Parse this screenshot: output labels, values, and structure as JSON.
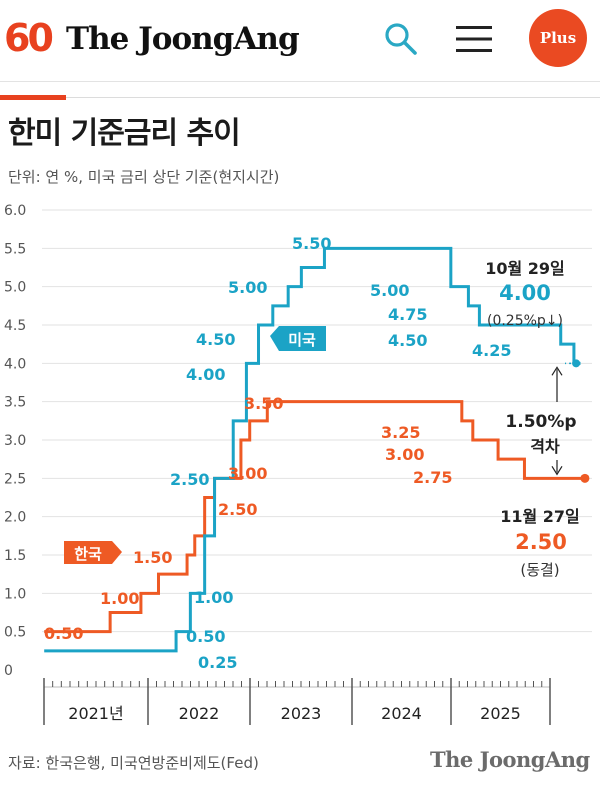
{
  "header": {
    "logo_anniversary": "60",
    "brand": "The JoongAng",
    "plus_label": "Plus"
  },
  "icons": {
    "search": "search-icon",
    "menu": "hamburger-menu-icon"
  },
  "colors": {
    "us": "#1ba3c6",
    "korea": "#ee5a24",
    "brand_accent": "#e8411f"
  },
  "chart_data": {
    "type": "line",
    "title": "한미 기준금리 추이",
    "unit": "단위: 연 %, 미국 금리 상단 기준(현지시간)",
    "source": "자료: 한국은행, 미국연방준비제도(Fed)",
    "ylim": [
      0,
      6
    ],
    "yticks": [
      "0",
      "0.5",
      "1.0",
      "1.5",
      "2.0",
      "2.5",
      "3.0",
      "3.5",
      "4.0",
      "4.5",
      "5.0",
      "5.5",
      "6.0"
    ],
    "xlim": [
      2020.98,
      2026.03
    ],
    "xticks": [
      "2021년",
      "2022",
      "2023",
      "2024",
      "2025"
    ],
    "grid": true,
    "series": [
      {
        "name": "미국",
        "label": "미국",
        "steps": [
          [
            2021.0,
            0.25
          ],
          [
            2022.2,
            0.5
          ],
          [
            2022.33,
            1.0
          ],
          [
            2022.46,
            1.75
          ],
          [
            2022.55,
            2.5
          ],
          [
            2022.72,
            3.25
          ],
          [
            2022.84,
            4.0
          ],
          [
            2022.95,
            4.5
          ],
          [
            2023.08,
            4.75
          ],
          [
            2023.22,
            5.0
          ],
          [
            2023.34,
            5.25
          ],
          [
            2023.55,
            5.5
          ],
          [
            2024.7,
            5.0
          ],
          [
            2024.86,
            4.75
          ],
          [
            2024.96,
            4.5
          ],
          [
            2025.7,
            4.25
          ],
          [
            2025.82,
            4.0
          ]
        ],
        "labels": [
          "0.25",
          "0.50",
          "1.00",
          "2.50",
          "4.00",
          "4.50",
          "5.00",
          "5.50",
          "5.00",
          "4.75",
          "4.50",
          "4.25"
        ],
        "end_date": "10월 29일",
        "end_value": "4.00",
        "end_change": "(0.25%p↓)"
      },
      {
        "name": "한국",
        "label": "한국",
        "steps": [
          [
            2021.0,
            0.5
          ],
          [
            2021.6,
            0.75
          ],
          [
            2021.88,
            1.0
          ],
          [
            2022.04,
            1.25
          ],
          [
            2022.3,
            1.5
          ],
          [
            2022.37,
            1.75
          ],
          [
            2022.46,
            2.25
          ],
          [
            2022.55,
            2.5
          ],
          [
            2022.79,
            3.0
          ],
          [
            2022.87,
            3.25
          ],
          [
            2023.03,
            3.5
          ],
          [
            2024.8,
            3.25
          ],
          [
            2024.9,
            3.0
          ],
          [
            2025.13,
            2.75
          ],
          [
            2025.37,
            2.5
          ]
        ],
        "labels": [
          "0.50",
          "1.00",
          "1.50",
          "2.50",
          "3.00",
          "3.50",
          "3.25",
          "3.00",
          "2.75"
        ],
        "end_date": "11월 27일",
        "end_value": "2.50",
        "end_change": "(동결)"
      }
    ],
    "gap_annotation": {
      "value": "1.50%p",
      "label": "격차"
    }
  },
  "footer": {
    "brand": "The JoongAng"
  }
}
